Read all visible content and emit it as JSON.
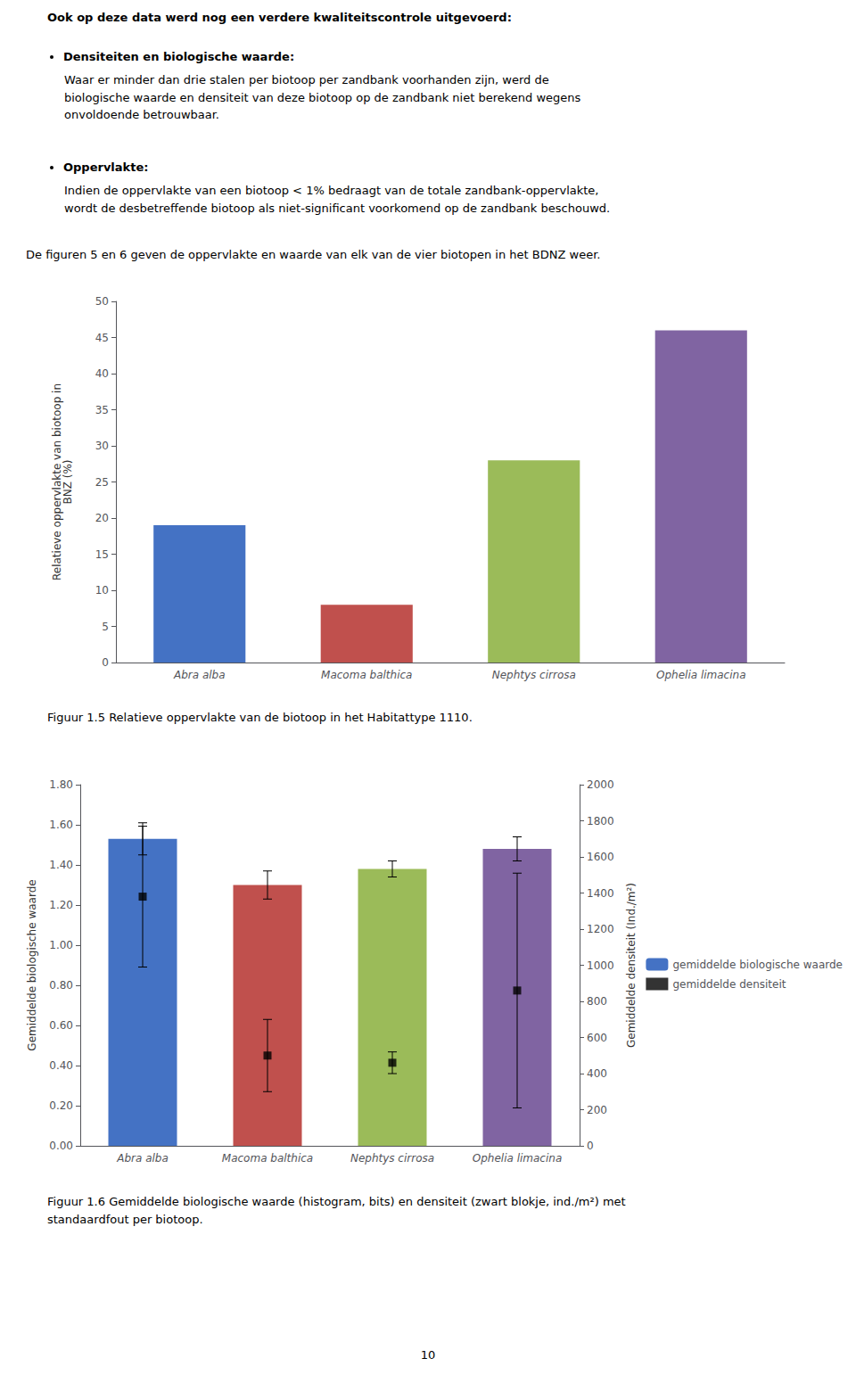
{
  "annotations": [
    "Ook op deze data werd nog een verdere kwaliteitscontrole uitgevoerd:",
    "Densiteiten en biologische waarde:",
    "Waar er minder dan drie stalen per biotoop per zandbank voorhanden zijn, werd de\nbiologische waarde en densiteit van deze biotoop op de zandbank niet berekend wegens\nonvoldoende betrouwbaar.",
    "Oppervlakte:",
    "Indien de oppervlakte van een biotoop < 1% bedraagt van de totale zandbank-oppervlakte,\nwordt de desbetreffende biotoop als niet-significant voorkomend op de zandbank beschouwd.",
    "De figuren 5 en 6 geven de oppervlakte en waarde van elk van de vier biotopen in het BDNZ weer.",
    "10"
  ],
  "chart_data": [
    {
      "type": "bar",
      "categories": [
        "Abra alba",
        "Macoma balthica",
        "Nephtys cirrosa",
        "Ophelia limacina"
      ],
      "values": [
        19.0,
        8.0,
        28.0,
        46.0
      ],
      "colors": [
        "#4472C4",
        "#C0504D",
        "#9BBB59",
        "#8064A2"
      ],
      "ylabel": "Relatieve oppervlakte van biotoop in\nBNZ (%)",
      "ylim": [
        0,
        50
      ],
      "yticks": [
        0,
        5,
        10,
        15,
        20,
        25,
        30,
        35,
        40,
        45,
        50
      ],
      "grid": false,
      "annotations": [
        "Figuur 1.5 Relatieve oppervlakte van de biotoop in het Habitattype 1110."
      ]
    },
    {
      "type": "bar",
      "categories": [
        "Abra alba",
        "Macoma balthica",
        "Nephtys cirrosa",
        "Ophelia limacina"
      ],
      "series": [
        {
          "name": "gemiddelde biologische waarde",
          "type": "bar",
          "colors": [
            "#4472C4",
            "#C0504D",
            "#9BBB59",
            "#8064A2"
          ],
          "values": [
            1.53,
            1.3,
            1.38,
            1.48
          ],
          "errors": [
            0.08,
            0.07,
            0.04,
            0.06
          ]
        },
        {
          "name": "gemiddelde densiteit",
          "type": "scatter",
          "axis": "y2",
          "marker": "square",
          "color": "#000000",
          "values": [
            1380,
            500,
            460,
            860
          ],
          "errors": [
            390,
            200,
            60,
            650
          ]
        }
      ],
      "ylabel": "Gemiddelde biologische waarde",
      "ylim": [
        0.0,
        1.8
      ],
      "yticks": [
        {
          "value": 0.0,
          "label": "0.00"
        },
        {
          "value": 0.2,
          "label": "0.20"
        },
        {
          "value": 0.4,
          "label": "0.40"
        },
        {
          "value": 0.6,
          "label": "0.60"
        },
        {
          "value": 0.8,
          "label": "0.80"
        },
        {
          "value": 1.0,
          "label": "1.00"
        },
        {
          "value": 1.2,
          "label": "1.20"
        },
        {
          "value": 1.4,
          "label": "1.40"
        },
        {
          "value": 1.6,
          "label": "1.60"
        },
        {
          "value": 1.8,
          "label": "1.80"
        }
      ],
      "y2label": "Gemiddelde densiteit (Ind./m²)",
      "y2lim": [
        0,
        2000
      ],
      "y2ticks": [
        0,
        200,
        400,
        600,
        800,
        1000,
        1200,
        1400,
        1600,
        1800,
        2000
      ],
      "grid": false,
      "legend": "right",
      "annotations": [
        "Figuur 1.6 Gemiddelde biologische waarde (histogram, bits) en densiteit (zwart blokje, ind./m²) met\nstandaardfout per biotoop."
      ]
    }
  ]
}
